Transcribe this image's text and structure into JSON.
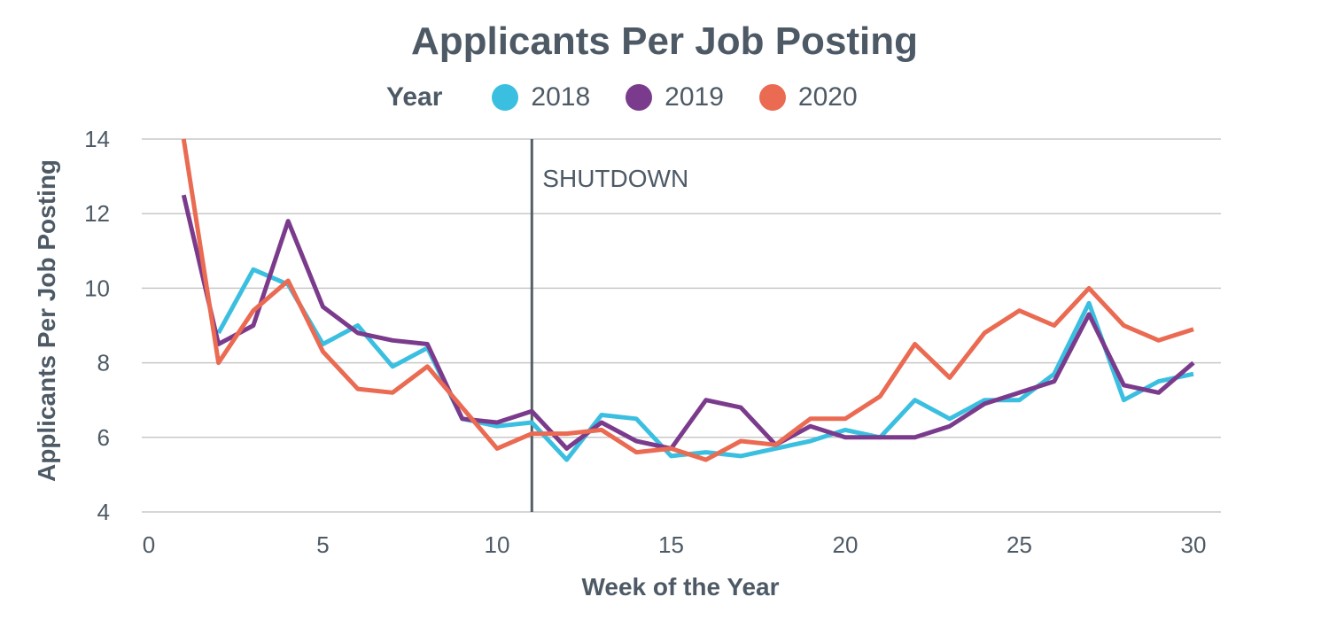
{
  "chart_data": {
    "type": "line",
    "title": "Applicants Per Job Posting",
    "xlabel": "Week of the Year",
    "ylabel": "Applicants Per Job Posting",
    "xlim": [
      0,
      31
    ],
    "ylim": [
      4,
      14
    ],
    "xticks": [
      0,
      5,
      10,
      15,
      20,
      25,
      30
    ],
    "yticks": [
      4,
      6,
      8,
      10,
      12,
      14
    ],
    "grid": "horizontal",
    "legend": {
      "title": "Year",
      "position": "top-center"
    },
    "x": [
      1,
      2,
      3,
      4,
      5,
      6,
      7,
      8,
      9,
      10,
      11,
      12,
      13,
      14,
      15,
      16,
      17,
      18,
      19,
      20,
      21,
      22,
      23,
      24,
      25,
      26,
      27,
      28,
      29,
      30
    ],
    "series": [
      {
        "name": "2018",
        "color": "#3bbfe0",
        "values": [
          null,
          8.8,
          10.5,
          10.1,
          8.5,
          9.0,
          7.9,
          8.4,
          6.5,
          6.3,
          6.4,
          5.4,
          6.6,
          6.5,
          5.5,
          5.6,
          5.5,
          5.7,
          5.9,
          6.2,
          6.0,
          7.0,
          6.5,
          7.0,
          7.0,
          7.7,
          9.6,
          7.0,
          7.5,
          7.7
        ]
      },
      {
        "name": "2019",
        "color": "#7b3b8c",
        "values": [
          12.5,
          8.5,
          9.0,
          11.8,
          9.5,
          8.8,
          8.6,
          8.5,
          6.5,
          6.4,
          6.7,
          5.7,
          6.4,
          5.9,
          5.7,
          7.0,
          6.8,
          5.8,
          6.3,
          6.0,
          6.0,
          6.0,
          6.3,
          6.9,
          7.2,
          7.5,
          9.3,
          7.4,
          7.2,
          8.0
        ]
      },
      {
        "name": "2020",
        "color": "#ea6a52",
        "values": [
          14.0,
          8.0,
          9.4,
          10.2,
          8.3,
          7.3,
          7.2,
          7.9,
          6.8,
          5.7,
          6.1,
          6.1,
          6.2,
          5.6,
          5.7,
          5.4,
          5.9,
          5.8,
          6.5,
          6.5,
          7.1,
          8.5,
          7.6,
          8.8,
          9.4,
          9.0,
          10.0,
          9.0,
          8.6,
          8.9
        ]
      }
    ],
    "annotations": [
      {
        "type": "vline",
        "x": 11,
        "label": "SHUTDOWN",
        "color": "#555f66"
      }
    ]
  }
}
